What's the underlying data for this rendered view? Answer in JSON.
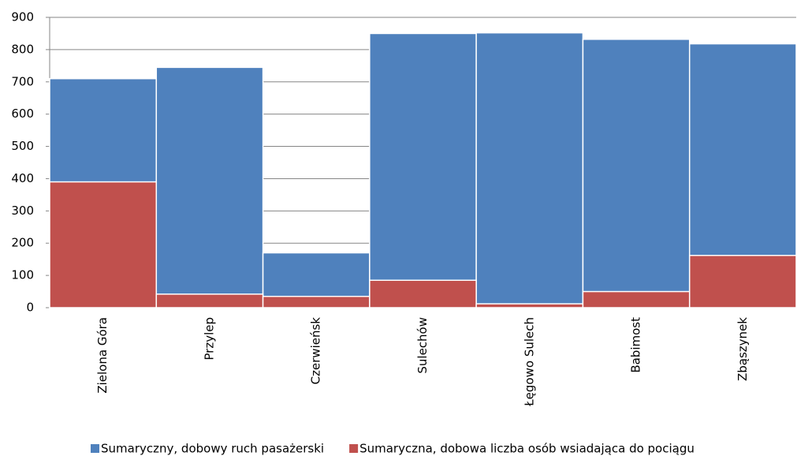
{
  "chart_data": {
    "type": "bar",
    "categories": [
      "Zielona Góra",
      "Przylep",
      "Czerwieńsk",
      "Sulechów",
      "Łęgowo Sulech",
      "Babimost",
      "Zbąszynek"
    ],
    "series": [
      {
        "name": "Sumaryczny, dobowy ruch pasażerski",
        "color": "#4f81bd",
        "values": [
          710,
          745,
          170,
          850,
          852,
          832,
          818
        ]
      },
      {
        "name": "Sumaryczna, dobowa liczba osób wsiadająca do pociągu",
        "color": "#c0504d",
        "values": [
          390,
          42,
          35,
          85,
          12,
          50,
          162
        ]
      }
    ],
    "ylim": [
      0,
      900
    ],
    "yticks": [
      0,
      100,
      200,
      300,
      400,
      500,
      600,
      700,
      800,
      900
    ],
    "grid": true,
    "legend": "bottom"
  }
}
